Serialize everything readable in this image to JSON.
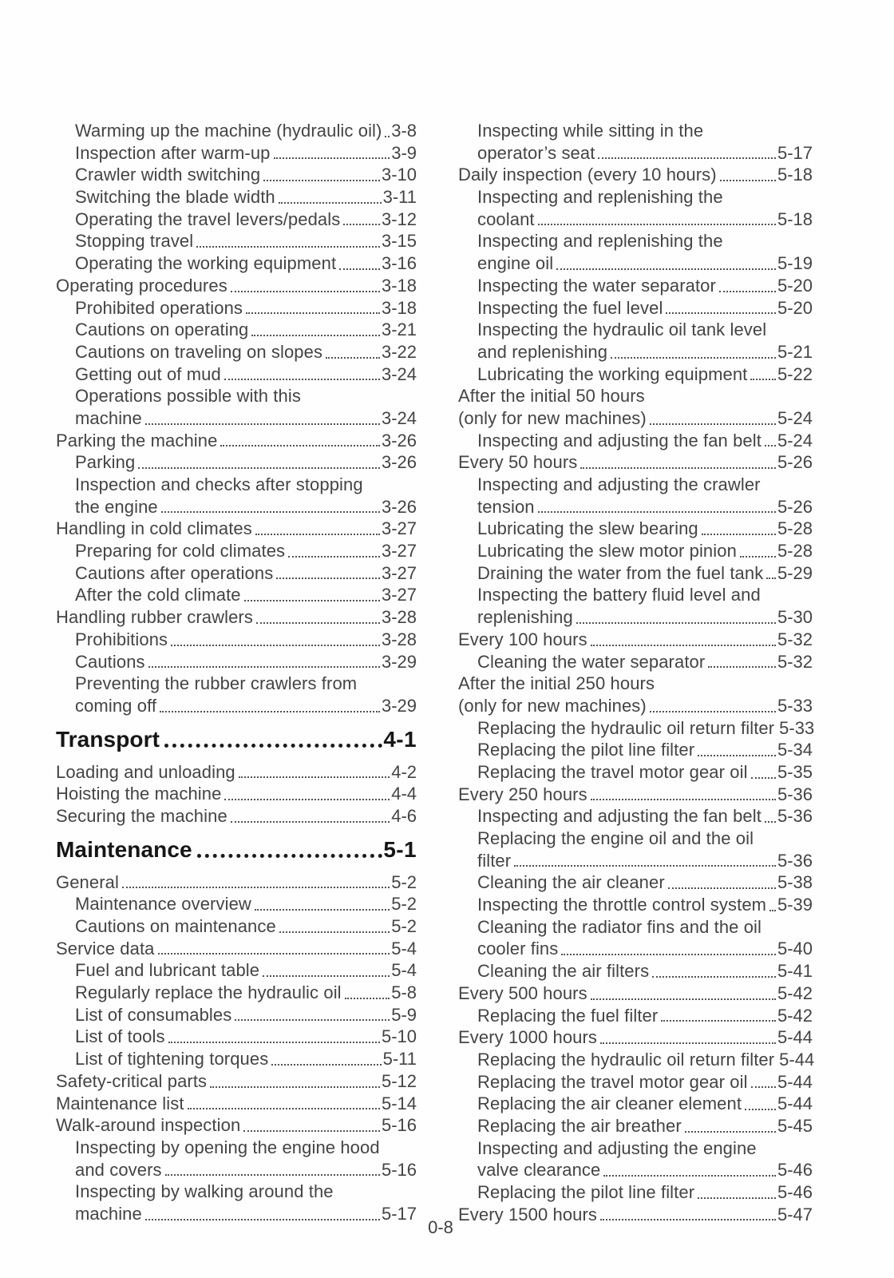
{
  "footer": {
    "page_number": "0-8"
  },
  "columns": {
    "left": [
      {
        "header": false,
        "indent": 1,
        "text": "Warming up the machine (hydraulic oil)",
        "page": "3-8"
      },
      {
        "header": false,
        "indent": 1,
        "text": "Inspection after warm-up",
        "page": "3-9"
      },
      {
        "header": false,
        "indent": 1,
        "text": "Crawler width switching",
        "page": "3-10"
      },
      {
        "header": false,
        "indent": 1,
        "text": "Switching the blade width",
        "page": "3-11"
      },
      {
        "header": false,
        "indent": 1,
        "text": "Operating the travel levers/pedals",
        "page": "3-12"
      },
      {
        "header": false,
        "indent": 1,
        "text": "Stopping travel",
        "page": "3-15"
      },
      {
        "header": false,
        "indent": 1,
        "text": "Operating the working equipment",
        "page": "3-16"
      },
      {
        "header": false,
        "indent": 0,
        "text": "Operating procedures",
        "page": "3-18"
      },
      {
        "header": false,
        "indent": 1,
        "text": "Prohibited operations",
        "page": "3-18"
      },
      {
        "header": false,
        "indent": 1,
        "text": "Cautions on operating",
        "page": "3-21"
      },
      {
        "header": false,
        "indent": 1,
        "text": "Cautions on traveling on slopes",
        "page": "3-22"
      },
      {
        "header": false,
        "indent": 1,
        "text": "Getting out of mud",
        "page": "3-24"
      },
      {
        "header": false,
        "indent": 1,
        "text": "Operations possible with this",
        "page": null
      },
      {
        "header": false,
        "indent": 1,
        "text": "machine",
        "page": "3-24"
      },
      {
        "header": false,
        "indent": 0,
        "text": "Parking the machine",
        "page": "3-26"
      },
      {
        "header": false,
        "indent": 1,
        "text": "Parking",
        "page": "3-26"
      },
      {
        "header": false,
        "indent": 1,
        "text": "Inspection and checks after stopping",
        "page": null
      },
      {
        "header": false,
        "indent": 1,
        "text": "the engine",
        "page": "3-26"
      },
      {
        "header": false,
        "indent": 0,
        "text": "Handling in cold climates",
        "page": "3-27"
      },
      {
        "header": false,
        "indent": 1,
        "text": "Preparing for cold climates",
        "page": "3-27"
      },
      {
        "header": false,
        "indent": 1,
        "text": "Cautions after operations",
        "page": "3-27"
      },
      {
        "header": false,
        "indent": 1,
        "text": "After the cold climate",
        "page": "3-27"
      },
      {
        "header": false,
        "indent": 0,
        "text": "Handling rubber crawlers",
        "page": "3-28"
      },
      {
        "header": false,
        "indent": 1,
        "text": "Prohibitions",
        "page": "3-28"
      },
      {
        "header": false,
        "indent": 1,
        "text": "Cautions",
        "page": "3-29"
      },
      {
        "header": false,
        "indent": 1,
        "text": "Preventing the rubber crawlers from",
        "page": null
      },
      {
        "header": false,
        "indent": 1,
        "text": "coming off",
        "page": "3-29"
      },
      {
        "header": true,
        "indent": 0,
        "text": "Transport",
        "page": "4-1"
      },
      {
        "header": false,
        "indent": 0,
        "text": "Loading and unloading",
        "page": "4-2"
      },
      {
        "header": false,
        "indent": 0,
        "text": "Hoisting the machine",
        "page": "4-4"
      },
      {
        "header": false,
        "indent": 0,
        "text": "Securing the machine",
        "page": "4-6"
      },
      {
        "header": true,
        "indent": 0,
        "text": "Maintenance",
        "page": "5-1"
      },
      {
        "header": false,
        "indent": 0,
        "text": "General",
        "page": "5-2"
      },
      {
        "header": false,
        "indent": 1,
        "text": "Maintenance overview",
        "page": "5-2"
      },
      {
        "header": false,
        "indent": 1,
        "text": "Cautions on maintenance",
        "page": "5-2"
      },
      {
        "header": false,
        "indent": 0,
        "text": "Service data",
        "page": "5-4"
      },
      {
        "header": false,
        "indent": 1,
        "text": "Fuel and lubricant table",
        "page": "5-4"
      },
      {
        "header": false,
        "indent": 1,
        "text": "Regularly replace the hydraulic oil",
        "page": "5-8"
      },
      {
        "header": false,
        "indent": 1,
        "text": "List of consumables",
        "page": "5-9"
      },
      {
        "header": false,
        "indent": 1,
        "text": "List of tools",
        "page": "5-10"
      },
      {
        "header": false,
        "indent": 1,
        "text": "List of tightening torques",
        "page": "5-11"
      },
      {
        "header": false,
        "indent": 0,
        "text": "Safety-critical parts",
        "page": "5-12"
      },
      {
        "header": false,
        "indent": 0,
        "text": "Maintenance list",
        "page": "5-14"
      },
      {
        "header": false,
        "indent": 0,
        "text": "Walk-around inspection",
        "page": "5-16"
      },
      {
        "header": false,
        "indent": 1,
        "text": "Inspecting by opening the engine hood",
        "page": null
      },
      {
        "header": false,
        "indent": 1,
        "text": "and covers",
        "page": "5-16"
      },
      {
        "header": false,
        "indent": 1,
        "text": "Inspecting by walking around the",
        "page": null
      },
      {
        "header": false,
        "indent": 1,
        "text": "machine",
        "page": "5-17"
      }
    ],
    "right": [
      {
        "header": false,
        "indent": 1,
        "text": "Inspecting while sitting in the",
        "page": null
      },
      {
        "header": false,
        "indent": 1,
        "text": "operator’s seat",
        "page": "5-17"
      },
      {
        "header": false,
        "indent": 0,
        "text": "Daily inspection (every 10 hours)",
        "page": "5-18"
      },
      {
        "header": false,
        "indent": 1,
        "text": "Inspecting and replenishing the",
        "page": null
      },
      {
        "header": false,
        "indent": 1,
        "text": "coolant",
        "page": "5-18"
      },
      {
        "header": false,
        "indent": 1,
        "text": "Inspecting and replenishing the",
        "page": null
      },
      {
        "header": false,
        "indent": 1,
        "text": "engine oil",
        "page": "5-19"
      },
      {
        "header": false,
        "indent": 1,
        "text": "Inspecting the water separator",
        "page": "5-20"
      },
      {
        "header": false,
        "indent": 1,
        "text": "Inspecting the fuel level",
        "page": "5-20"
      },
      {
        "header": false,
        "indent": 1,
        "text": "Inspecting the hydraulic oil tank level",
        "page": null
      },
      {
        "header": false,
        "indent": 1,
        "text": "and replenishing",
        "page": "5-21"
      },
      {
        "header": false,
        "indent": 1,
        "text": "Lubricating the working equipment",
        "page": "5-22"
      },
      {
        "header": false,
        "indent": 0,
        "text": "After the initial 50 hours",
        "page": null
      },
      {
        "header": false,
        "indent": 0,
        "text": "(only for new machines)",
        "page": "5-24"
      },
      {
        "header": false,
        "indent": 1,
        "text": "Inspecting and adjusting the fan belt",
        "page": "5-24"
      },
      {
        "header": false,
        "indent": 0,
        "text": "Every 50 hours",
        "page": "5-26"
      },
      {
        "header": false,
        "indent": 1,
        "text": "Inspecting and adjusting the crawler",
        "page": null
      },
      {
        "header": false,
        "indent": 1,
        "text": "tension",
        "page": "5-26"
      },
      {
        "header": false,
        "indent": 1,
        "text": "Lubricating the slew bearing",
        "page": "5-28"
      },
      {
        "header": false,
        "indent": 1,
        "text": "Lubricating the slew motor pinion",
        "page": "5-28"
      },
      {
        "header": false,
        "indent": 1,
        "text": "Draining the water from the fuel tank",
        "page": "5-29"
      },
      {
        "header": false,
        "indent": 1,
        "text": "Inspecting the battery fluid level and",
        "page": null
      },
      {
        "header": false,
        "indent": 1,
        "text": "replenishing",
        "page": "5-30"
      },
      {
        "header": false,
        "indent": 0,
        "text": "Every 100 hours",
        "page": "5-32"
      },
      {
        "header": false,
        "indent": 1,
        "text": "Cleaning the water separator",
        "page": "5-32"
      },
      {
        "header": false,
        "indent": 0,
        "text": "After the initial 250 hours",
        "page": null
      },
      {
        "header": false,
        "indent": 0,
        "text": "(only for new machines)",
        "page": "5-33"
      },
      {
        "header": false,
        "indent": 1,
        "text": "Replacing the hydraulic oil return filter",
        "page": "5-33"
      },
      {
        "header": false,
        "indent": 1,
        "text": "Replacing the pilot line filter",
        "page": "5-34"
      },
      {
        "header": false,
        "indent": 1,
        "text": "Replacing the travel motor gear oil",
        "page": "5-35"
      },
      {
        "header": false,
        "indent": 0,
        "text": "Every 250 hours",
        "page": "5-36"
      },
      {
        "header": false,
        "indent": 1,
        "text": "Inspecting and adjusting the fan belt",
        "page": "5-36"
      },
      {
        "header": false,
        "indent": 1,
        "text": "Replacing the engine oil and the oil",
        "page": null
      },
      {
        "header": false,
        "indent": 1,
        "text": "filter",
        "page": "5-36"
      },
      {
        "header": false,
        "indent": 1,
        "text": "Cleaning the air cleaner",
        "page": "5-38"
      },
      {
        "header": false,
        "indent": 1,
        "text": "Inspecting the throttle control system",
        "page": "5-39"
      },
      {
        "header": false,
        "indent": 1,
        "text": "Cleaning the radiator fins and the oil",
        "page": null
      },
      {
        "header": false,
        "indent": 1,
        "text": "cooler fins",
        "page": "5-40"
      },
      {
        "header": false,
        "indent": 1,
        "text": "Cleaning the air filters",
        "page": "5-41"
      },
      {
        "header": false,
        "indent": 0,
        "text": "Every 500 hours",
        "page": "5-42"
      },
      {
        "header": false,
        "indent": 1,
        "text": "Replacing the fuel filter",
        "page": "5-42"
      },
      {
        "header": false,
        "indent": 0,
        "text": "Every 1000 hours",
        "page": "5-44"
      },
      {
        "header": false,
        "indent": 1,
        "text": "Replacing the hydraulic oil return filter",
        "page": "5-44"
      },
      {
        "header": false,
        "indent": 1,
        "text": "Replacing the travel motor gear oil",
        "page": "5-44"
      },
      {
        "header": false,
        "indent": 1,
        "text": "Replacing the air cleaner element",
        "page": "5-44"
      },
      {
        "header": false,
        "indent": 1,
        "text": "Replacing the air breather",
        "page": "5-45"
      },
      {
        "header": false,
        "indent": 1,
        "text": "Inspecting and adjusting the engine",
        "page": null
      },
      {
        "header": false,
        "indent": 1,
        "text": "valve clearance",
        "page": "5-46"
      },
      {
        "header": false,
        "indent": 1,
        "text": "Replacing the pilot line filter",
        "page": "5-46"
      },
      {
        "header": false,
        "indent": 0,
        "text": "Every 1500 hours",
        "page": "5-47"
      }
    ]
  }
}
